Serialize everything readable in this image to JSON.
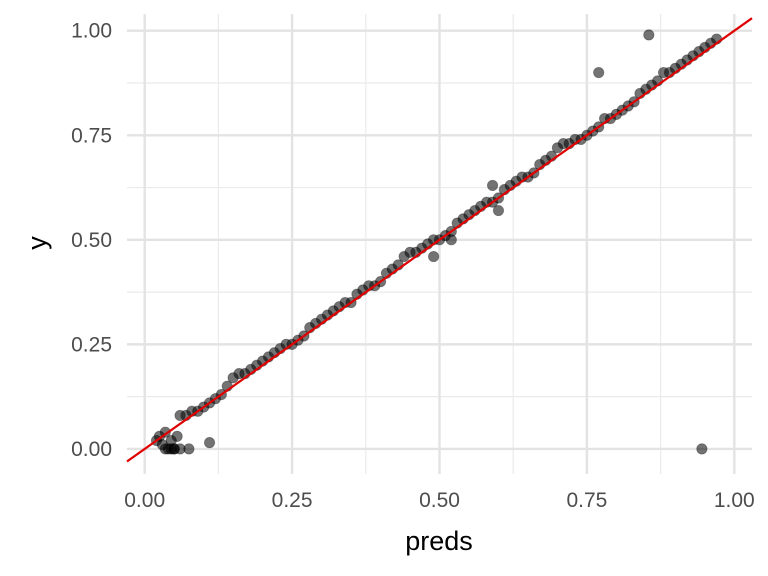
{
  "chart_data": {
    "type": "scatter",
    "xlabel": "preds",
    "ylabel": "y",
    "xlim": [
      -0.03,
      1.03
    ],
    "ylim": [
      -0.06,
      1.04
    ],
    "x_ticks": [
      0.0,
      0.25,
      0.5,
      0.75,
      1.0
    ],
    "x_tick_labels": [
      "0.00",
      "0.25",
      "0.50",
      "0.75",
      "1.00"
    ],
    "y_ticks": [
      0.0,
      0.25,
      0.5,
      0.75,
      1.0
    ],
    "y_tick_labels": [
      "0.00",
      "0.25",
      "0.50",
      "0.75",
      "1.00"
    ],
    "grid": true,
    "point_color": "#000000",
    "point_opacity": 0.55,
    "fit_line": {
      "color": "#e00000",
      "x": [
        -0.03,
        1.03
      ],
      "y": [
        -0.03,
        1.03
      ]
    },
    "x": [
      0.02,
      0.025,
      0.03,
      0.035,
      0.04,
      0.045,
      0.05,
      0.055,
      0.06,
      0.07,
      0.08,
      0.09,
      0.1,
      0.11,
      0.12,
      0.13,
      0.14,
      0.15,
      0.16,
      0.17,
      0.18,
      0.19,
      0.2,
      0.21,
      0.22,
      0.23,
      0.24,
      0.25,
      0.26,
      0.27,
      0.28,
      0.29,
      0.3,
      0.31,
      0.32,
      0.33,
      0.34,
      0.35,
      0.36,
      0.37,
      0.38,
      0.39,
      0.4,
      0.41,
      0.42,
      0.43,
      0.44,
      0.45,
      0.46,
      0.47,
      0.48,
      0.49,
      0.5,
      0.51,
      0.52,
      0.53,
      0.54,
      0.55,
      0.56,
      0.57,
      0.58,
      0.59,
      0.6,
      0.61,
      0.62,
      0.63,
      0.64,
      0.65,
      0.66,
      0.67,
      0.68,
      0.69,
      0.7,
      0.71,
      0.72,
      0.73,
      0.74,
      0.75,
      0.76,
      0.77,
      0.78,
      0.79,
      0.8,
      0.81,
      0.82,
      0.83,
      0.84,
      0.85,
      0.86,
      0.87,
      0.88,
      0.89,
      0.9,
      0.91,
      0.92,
      0.93,
      0.94,
      0.95,
      0.96,
      0.97,
      0.035,
      0.045,
      0.05,
      0.06,
      0.075,
      0.11,
      0.855,
      0.77,
      0.945,
      0.49,
      0.52,
      0.6,
      0.59
    ],
    "y": [
      0.02,
      0.03,
      0.01,
      0.04,
      0.0,
      0.02,
      0.0,
      0.03,
      0.08,
      0.08,
      0.09,
      0.09,
      0.1,
      0.11,
      0.12,
      0.13,
      0.15,
      0.17,
      0.18,
      0.18,
      0.19,
      0.2,
      0.21,
      0.22,
      0.23,
      0.24,
      0.25,
      0.25,
      0.26,
      0.27,
      0.29,
      0.3,
      0.31,
      0.32,
      0.33,
      0.34,
      0.35,
      0.35,
      0.37,
      0.38,
      0.39,
      0.39,
      0.4,
      0.42,
      0.43,
      0.44,
      0.46,
      0.47,
      0.47,
      0.48,
      0.49,
      0.5,
      0.5,
      0.51,
      0.52,
      0.54,
      0.55,
      0.56,
      0.57,
      0.58,
      0.59,
      0.59,
      0.6,
      0.62,
      0.63,
      0.64,
      0.65,
      0.65,
      0.66,
      0.68,
      0.69,
      0.7,
      0.72,
      0.73,
      0.73,
      0.74,
      0.74,
      0.75,
      0.76,
      0.77,
      0.79,
      0.79,
      0.8,
      0.81,
      0.82,
      0.83,
      0.85,
      0.86,
      0.87,
      0.88,
      0.9,
      0.9,
      0.91,
      0.92,
      0.93,
      0.94,
      0.95,
      0.96,
      0.97,
      0.98,
      0.0,
      0.0,
      0.0,
      0.0,
      0.0,
      0.015,
      0.99,
      0.9,
      0.0,
      0.46,
      0.5,
      0.57,
      0.63
    ]
  }
}
